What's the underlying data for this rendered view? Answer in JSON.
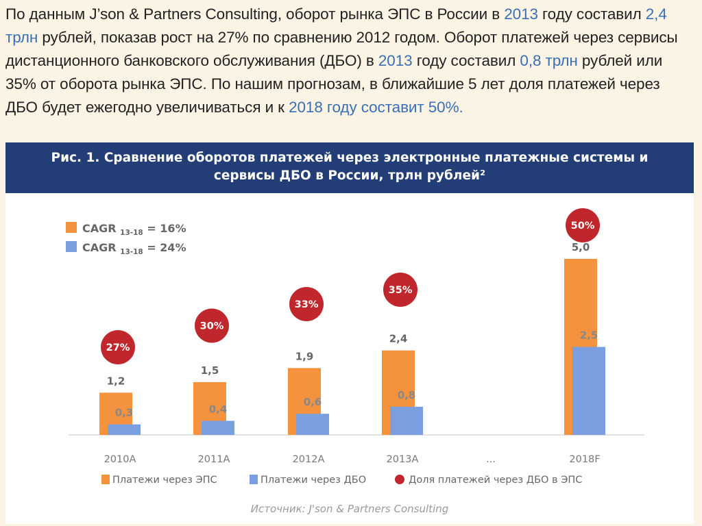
{
  "intro": {
    "segments": [
      {
        "text": "По данным J’son & Partners Consulting, оборот рынка ЭПС в России в ",
        "hl": false
      },
      {
        "text": "2013",
        "hl": true
      },
      {
        "text": " году составил ",
        "hl": false
      },
      {
        "text": "2,4 трлн",
        "hl": true
      },
      {
        "text": " рублей, показав рост на 27% по сравнению 2012 годом. Оборот платежей через сервисы дистанционного банковского обслуживания (ДБО) в ",
        "hl": false
      },
      {
        "text": "2013",
        "hl": true
      },
      {
        "text": " году составил ",
        "hl": false
      },
      {
        "text": "0,8 трлн",
        "hl": true
      },
      {
        "text": " рублей или 35% от оборота рынка ЭПС. По нашим прогнозам, в ближайшие 5 лет доля платежей через ДБО будет ежегодно увеличиваться и к ",
        "hl": false
      },
      {
        "text": "2018 году составит 50%.",
        "hl": true
      }
    ]
  },
  "figure": {
    "title_line1": "Рис. 1. Сравнение оборотов платежей через электронные платежные системы и",
    "title_line2": "сервисы ДБО в России, трлн рублей²",
    "source": "Источник: J'son & Partners Consulting"
  },
  "colors": {
    "accent_text": "#3a6fb5",
    "eps": "#f5923e",
    "dbo": "#7a9fe0",
    "share": "#c0272d",
    "title_bg": "#233e76",
    "page_bg": "#fbf3e3"
  },
  "chart_data": {
    "type": "bar",
    "categories": [
      "2010A",
      "2011A",
      "2012A",
      "2013A",
      "...",
      "2018F"
    ],
    "series": [
      {
        "name": "Платежи через ЭПС",
        "values": [
          1.2,
          1.5,
          1.9,
          2.4,
          null,
          5.0
        ],
        "labels": [
          "1,2",
          "1,5",
          "1,9",
          "2,4",
          "",
          "5,0"
        ],
        "color": "#f5923e"
      },
      {
        "name": "Платежи через ДБО",
        "values": [
          0.3,
          0.4,
          0.6,
          0.8,
          null,
          2.5
        ],
        "labels": [
          "0,3",
          "0,4",
          "0,6",
          "0,8",
          "",
          "2,5"
        ],
        "color": "#7a9fe0"
      }
    ],
    "share_series": {
      "name": "Доля платежей через ДБО в ЭПС",
      "values": [
        27,
        30,
        33,
        35,
        null,
        50
      ],
      "labels": [
        "27%",
        "30%",
        "33%",
        "35%",
        "",
        "50%"
      ],
      "color": "#c0272d"
    },
    "cagr": [
      {
        "text": "CAGR",
        "sub": "13-18",
        "value": "= 16%",
        "color": "#f5923e"
      },
      {
        "text": "CAGR",
        "sub": "13-18",
        "value": "= 24%",
        "color": "#7a9fe0"
      }
    ],
    "ylim": [
      0,
      5.5
    ],
    "grid": false,
    "legend_position": "bottom"
  }
}
